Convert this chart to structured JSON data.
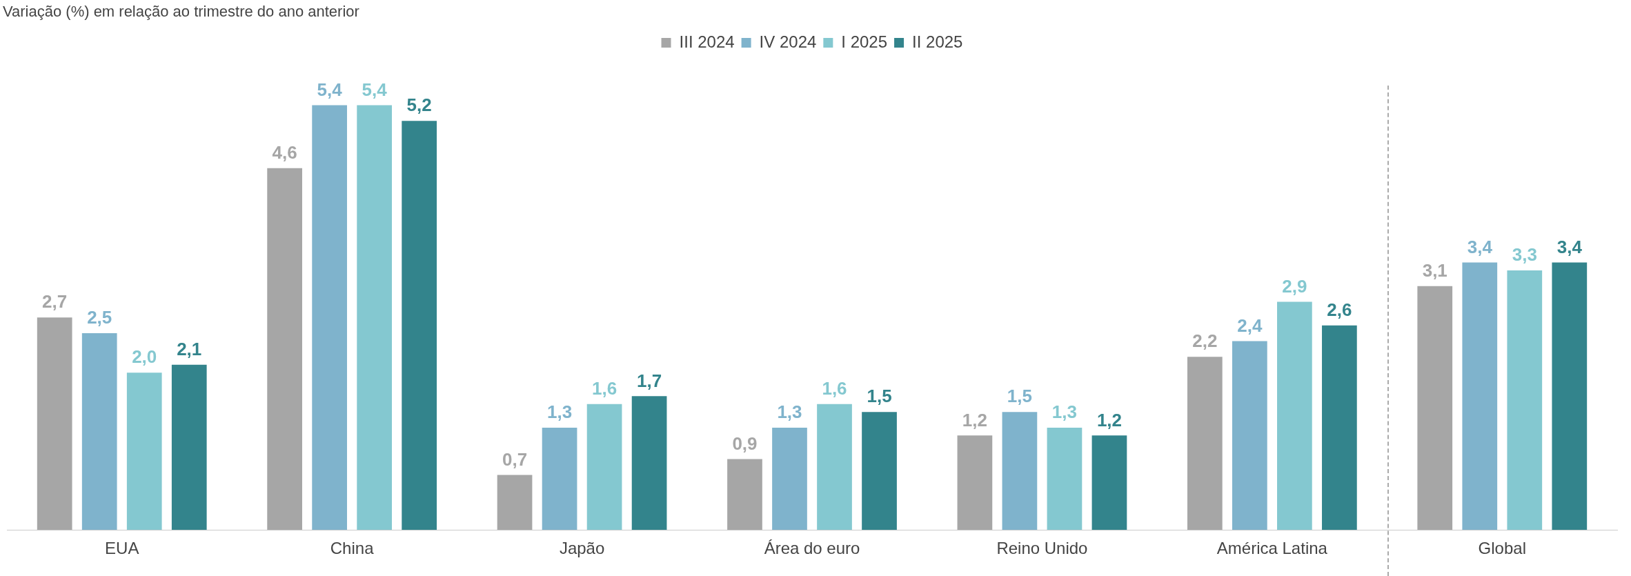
{
  "chart_data": {
    "type": "bar",
    "title": "Variação (%) em relação ao trimestre do ano anterior",
    "categories": [
      "EUA",
      "China",
      "Japão",
      "Área do euro",
      "Reino Unido",
      "América Latina",
      "Global"
    ],
    "series": [
      {
        "name": "III 2024",
        "color": "#a6a6a6",
        "values": [
          2.7,
          4.6,
          0.7,
          0.9,
          1.2,
          2.2,
          3.1
        ],
        "value_labels": [
          "2,7",
          "4,6",
          "0,7",
          "0,9",
          "1,2",
          "2,2",
          "3,1"
        ]
      },
      {
        "name": "IV 2024",
        "color": "#7fb3cc",
        "values": [
          2.5,
          5.4,
          1.3,
          1.3,
          1.5,
          2.4,
          3.4
        ],
        "value_labels": [
          "2,5",
          "5,4",
          "1,3",
          "1,3",
          "1,5",
          "2,4",
          "3,4"
        ]
      },
      {
        "name": "I 2025",
        "color": "#84c8d0",
        "values": [
          2.0,
          5.4,
          1.6,
          1.6,
          1.3,
          2.9,
          3.3
        ],
        "value_labels": [
          "2,0",
          "5,4",
          "1,6",
          "1,6",
          "1,3",
          "2,9",
          "3,3"
        ]
      },
      {
        "name": "II 2025",
        "color": "#33848c",
        "values": [
          2.1,
          5.2,
          1.7,
          1.5,
          1.2,
          2.6,
          3.4
        ],
        "value_labels": [
          "2,1",
          "5,2",
          "1,7",
          "1,5",
          "1,2",
          "2,6",
          "3,4"
        ]
      }
    ],
    "legend": "top",
    "grid": false
  }
}
